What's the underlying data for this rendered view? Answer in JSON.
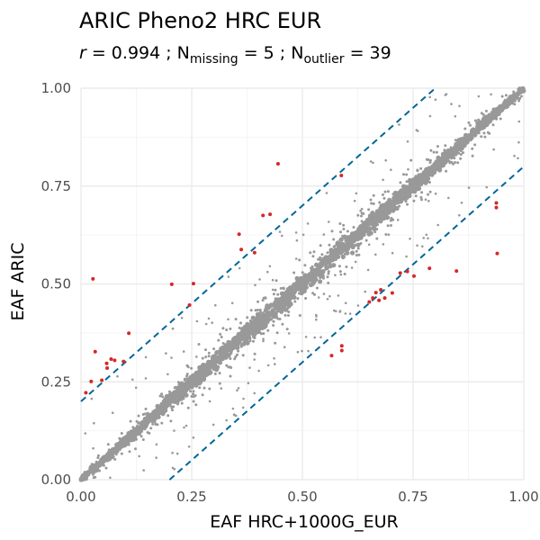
{
  "chart_data": {
    "type": "scatter",
    "title": "ARIC Pheno2 HRC EUR",
    "subtitle": {
      "r_symbol": "r",
      "r_value": " = 0.994 ; N",
      "missing_sub": "missing",
      "missing_value": " = 5 ; N",
      "outlier_sub": "outlier",
      "outlier_value": " = 39"
    },
    "xlabel": "EAF HRC+1000G_EUR",
    "ylabel": "EAF ARIC",
    "xlim": [
      0,
      1
    ],
    "ylim": [
      0,
      1
    ],
    "x_ticks": [
      "0.00",
      "0.25",
      "0.50",
      "0.75",
      "1.00"
    ],
    "y_ticks": [
      "0.00",
      "0.25",
      "0.50",
      "0.75",
      "1.00"
    ],
    "grid": true,
    "colors": {
      "points": "#999999",
      "outliers": "#d62728",
      "threshold_lines": "#006699",
      "grid_major": "#ebebeb",
      "grid_minor": "#f5f5f5"
    },
    "threshold_lines": [
      {
        "intercept": 0.2,
        "slope": 1
      },
      {
        "intercept": -0.2,
        "slope": 1
      }
    ],
    "outliers": [
      [
        0.445,
        0.807
      ],
      [
        0.588,
        0.777
      ],
      [
        0.427,
        0.678
      ],
      [
        0.411,
        0.675
      ],
      [
        0.357,
        0.627
      ],
      [
        0.362,
        0.588
      ],
      [
        0.392,
        0.58
      ],
      [
        0.027,
        0.513
      ],
      [
        0.254,
        0.501
      ],
      [
        0.205,
        0.499
      ],
      [
        0.245,
        0.446
      ],
      [
        0.108,
        0.374
      ],
      [
        0.032,
        0.327
      ],
      [
        0.068,
        0.308
      ],
      [
        0.076,
        0.305
      ],
      [
        0.058,
        0.297
      ],
      [
        0.059,
        0.285
      ],
      [
        0.047,
        0.254
      ],
      [
        0.023,
        0.251
      ],
      [
        0.011,
        0.222
      ],
      [
        0.096,
        0.302
      ],
      [
        0.938,
        0.707
      ],
      [
        0.938,
        0.695
      ],
      [
        0.94,
        0.578
      ],
      [
        0.848,
        0.533
      ],
      [
        0.787,
        0.54
      ],
      [
        0.752,
        0.52
      ],
      [
        0.737,
        0.532
      ],
      [
        0.721,
        0.528
      ],
      [
        0.703,
        0.477
      ],
      [
        0.677,
        0.485
      ],
      [
        0.686,
        0.464
      ],
      [
        0.659,
        0.464
      ],
      [
        0.673,
        0.458
      ],
      [
        0.651,
        0.454
      ],
      [
        0.566,
        0.317
      ],
      [
        0.589,
        0.342
      ],
      [
        0.589,
        0.33
      ],
      [
        0.666,
        0.478
      ]
    ]
  }
}
